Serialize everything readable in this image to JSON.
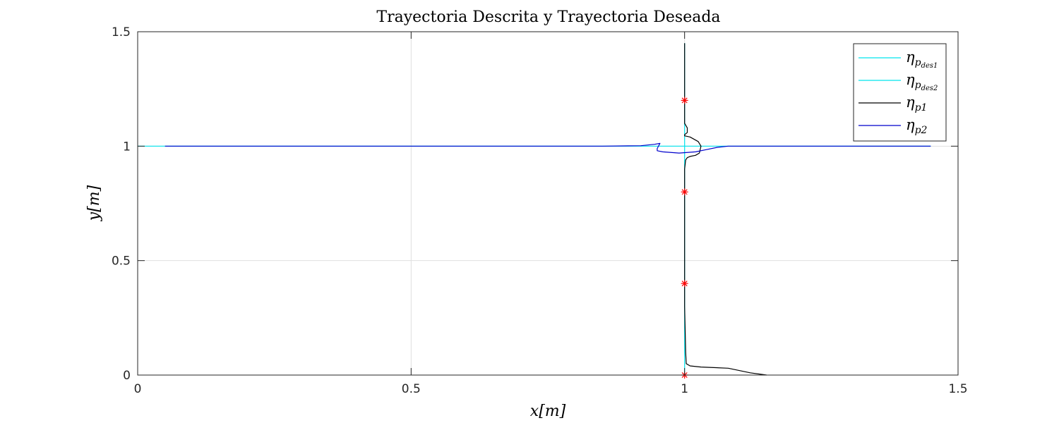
{
  "chart_data": {
    "type": "line",
    "title": "Trayectoria Descrita y Trayectoria Deseada",
    "xlabel": "x[m]",
    "ylabel": "y[m]",
    "xlim": [
      0,
      1.5
    ],
    "ylim": [
      0,
      1.5
    ],
    "xticks": [
      0,
      0.5,
      1,
      1.5
    ],
    "yticks": [
      0,
      0.5,
      1,
      1.5
    ],
    "xtick_labels": [
      "0",
      "0.5",
      "1",
      "1.5"
    ],
    "ytick_labels": [
      "0",
      "0.5",
      "1",
      "1.5"
    ],
    "grid": true,
    "legend_position": "top-right",
    "series": [
      {
        "key": "des1",
        "color": "#00e5ee",
        "x": [
          0,
          1.45
        ],
        "y": [
          1,
          1
        ]
      },
      {
        "key": "des2",
        "color": "#00e5ee",
        "x": [
          1,
          1
        ],
        "y": [
          0,
          1.45
        ]
      },
      {
        "key": "p1",
        "color": "#000000",
        "x": [
          1.15,
          1.12,
          1.08,
          1.03,
          1.01,
          1.003,
          1.002,
          1.0,
          1.0,
          1.0,
          1.0,
          1.002,
          1.005,
          1.01,
          1.02,
          1.027,
          1.03,
          1.025,
          1.01,
          1.0,
          1.0,
          1.005,
          1.005,
          1.0,
          1.0,
          1.0
        ],
        "y": [
          0.0,
          0.01,
          0.03,
          0.035,
          0.04,
          0.05,
          0.1,
          0.3,
          0.6,
          0.8,
          0.9,
          0.94,
          0.95,
          0.955,
          0.96,
          0.97,
          1.0,
          1.02,
          1.04,
          1.045,
          1.05,
          1.06,
          1.08,
          1.1,
          1.2,
          1.45
        ]
      },
      {
        "key": "p2",
        "color": "#0000cc",
        "x": [
          0.05,
          0.3,
          0.6,
          0.85,
          0.92,
          0.945,
          0.955,
          0.95,
          0.95,
          0.96,
          0.99,
          1.02,
          1.04,
          1.06,
          1.08,
          1.15,
          1.3,
          1.45
        ],
        "y": [
          1.0,
          1.0,
          1.0,
          1.0,
          1.002,
          1.008,
          1.012,
          0.99,
          0.98,
          0.975,
          0.97,
          0.975,
          0.985,
          0.995,
          1.0,
          1.0,
          1.0,
          1.0
        ]
      }
    ],
    "markers": {
      "color": "#ff0000",
      "symbol": "asterisk",
      "x": [
        1,
        1,
        1,
        1
      ],
      "y": [
        0,
        0.4,
        0.8,
        1.2
      ]
    },
    "legend": [
      {
        "series": "des1",
        "base": "η",
        "sub": "p",
        "subsub": "des1",
        "color": "#00e5ee"
      },
      {
        "series": "des2",
        "base": "η",
        "sub": "p",
        "subsub": "des2",
        "color": "#00e5ee"
      },
      {
        "series": "p1",
        "base": "η",
        "sub": "p1",
        "subsub": "",
        "color": "#000000"
      },
      {
        "series": "p2",
        "base": "η",
        "sub": "p2",
        "subsub": "",
        "color": "#0000cc"
      }
    ]
  }
}
